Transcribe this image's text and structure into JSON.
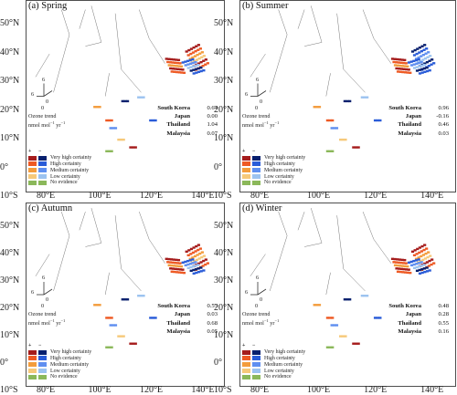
{
  "panels": [
    {
      "id": "a",
      "title": "(a) Spring",
      "stats": [
        {
          "country": "South Korea",
          "value": "0.64"
        },
        {
          "country": "Japan",
          "value": "0.00"
        },
        {
          "country": "Thailand",
          "value": "1.04"
        },
        {
          "country": "Malaysia",
          "value": "0.07"
        }
      ]
    },
    {
      "id": "b",
      "title": "(b) Summer",
      "stats": [
        {
          "country": "South Korea",
          "value": "0.96"
        },
        {
          "country": "Japan",
          "value": "-0.16"
        },
        {
          "country": "Thailand",
          "value": "0.46"
        },
        {
          "country": "Malaysia",
          "value": "0.03"
        }
      ]
    },
    {
      "id": "c",
      "title": "(c) Autumn",
      "stats": [
        {
          "country": "South Korea",
          "value": "0.55"
        },
        {
          "country": "Japan",
          "value": "0.03"
        },
        {
          "country": "Thailand",
          "value": "0.68"
        },
        {
          "country": "Malaysia",
          "value": "0.05"
        }
      ]
    },
    {
      "id": "d",
      "title": "(d) Winter",
      "stats": [
        {
          "country": "South Korea",
          "value": "0.48"
        },
        {
          "country": "Japan",
          "value": "0.28"
        },
        {
          "country": "Thailand",
          "value": "0.55"
        },
        {
          "country": "Malaysia",
          "value": "0.16"
        }
      ]
    }
  ],
  "axes": {
    "lat_labels": [
      "50°N",
      "40°N",
      "30°N",
      "20°N",
      "10°N",
      "0°",
      "10°S"
    ],
    "lon_labels": [
      "80°E",
      "100°E",
      "120°E",
      "140°E"
    ]
  },
  "ozone": {
    "title": "Ozone trend",
    "unit": "nmol mol",
    "unit_sup1": "−1",
    "unit_mid": " yr",
    "unit_sup2": "−1",
    "arrow_top": "6",
    "arrow_left": "6",
    "arrow_right": "0",
    "arrow_bottom": "0"
  },
  "legend": {
    "plus": "+",
    "minus": "−",
    "items": [
      {
        "label": "Very high certainty",
        "pos": "#a51c1c",
        "neg": "#08206e"
      },
      {
        "label": "High certainty",
        "pos": "#ee5a24",
        "neg": "#2a5cd8"
      },
      {
        "label": "Medium certainty",
        "pos": "#f39c3c",
        "neg": "#5f8ff0"
      },
      {
        "label": "Low certainty",
        "pos": "#f6c97a",
        "neg": "#9cc3f0"
      },
      {
        "label": "No evidence",
        "pos": "#8bb85a",
        "neg": "#8bb85a"
      }
    ]
  }
}
